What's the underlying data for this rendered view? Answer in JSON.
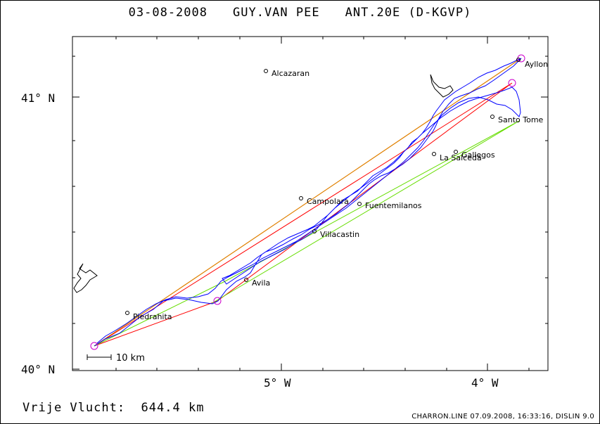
{
  "title": {
    "date": "03-08-2008",
    "pilot": "GUY.VAN PEE",
    "glider": "ANT.20E (D-KGVP)"
  },
  "footer": {
    "distance_label": "Vrije Vlucht:",
    "distance_value": "644.4 km",
    "credits": "CHARRON.LINE 07.09.2008, 16:33:16, DISLIN 9.0"
  },
  "axes": {
    "lat_labels": [
      "41° N",
      "40° N"
    ],
    "lon_labels": [
      "5° W",
      "4° W"
    ],
    "scale_label": "10 km"
  },
  "places": [
    {
      "name": "Alcazaran"
    },
    {
      "name": "Ayllon"
    },
    {
      "name": "Santo Tome"
    },
    {
      "name": "Gallegos"
    },
    {
      "name": "La Salceda"
    },
    {
      "name": "Campolara"
    },
    {
      "name": "Fuentemilanos"
    },
    {
      "name": "Villacastin"
    },
    {
      "name": "Avila"
    },
    {
      "name": "Piedrahita"
    }
  ],
  "colors": {
    "track": "#0000ff",
    "leg_orange": "#e08000",
    "leg_red": "#ff0000",
    "leg_green": "#66dd00",
    "turnpoint": "#cc00cc"
  }
}
